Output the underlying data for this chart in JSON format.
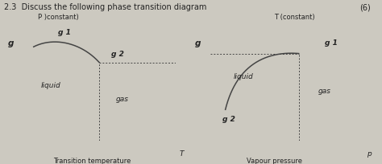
{
  "title": "2.3  Discuss the following phase transition diagram",
  "title_points": "(6)",
  "bg_color": "#ccc9c0",
  "line_color": "#444444",
  "text_color": "#222222",
  "diagram1": {
    "xlabel": "Transition temperature",
    "xlabel_end": "T",
    "ylabel_top": "P )constant)",
    "ylabel_g": "g",
    "curve_label_g1": "g 1",
    "curve_label_g2": "g 2",
    "region_liquid": "liquid",
    "region_gas": "gas"
  },
  "diagram2": {
    "xlabel": "Vapour pressure",
    "xlabel_end": "p",
    "ylabel_top": "T (constant)",
    "ylabel_g": "g",
    "curve_label_g1": "g 1",
    "curve_label_g2": "g 2",
    "region_liquid": "liquid",
    "region_gas": "gas"
  }
}
